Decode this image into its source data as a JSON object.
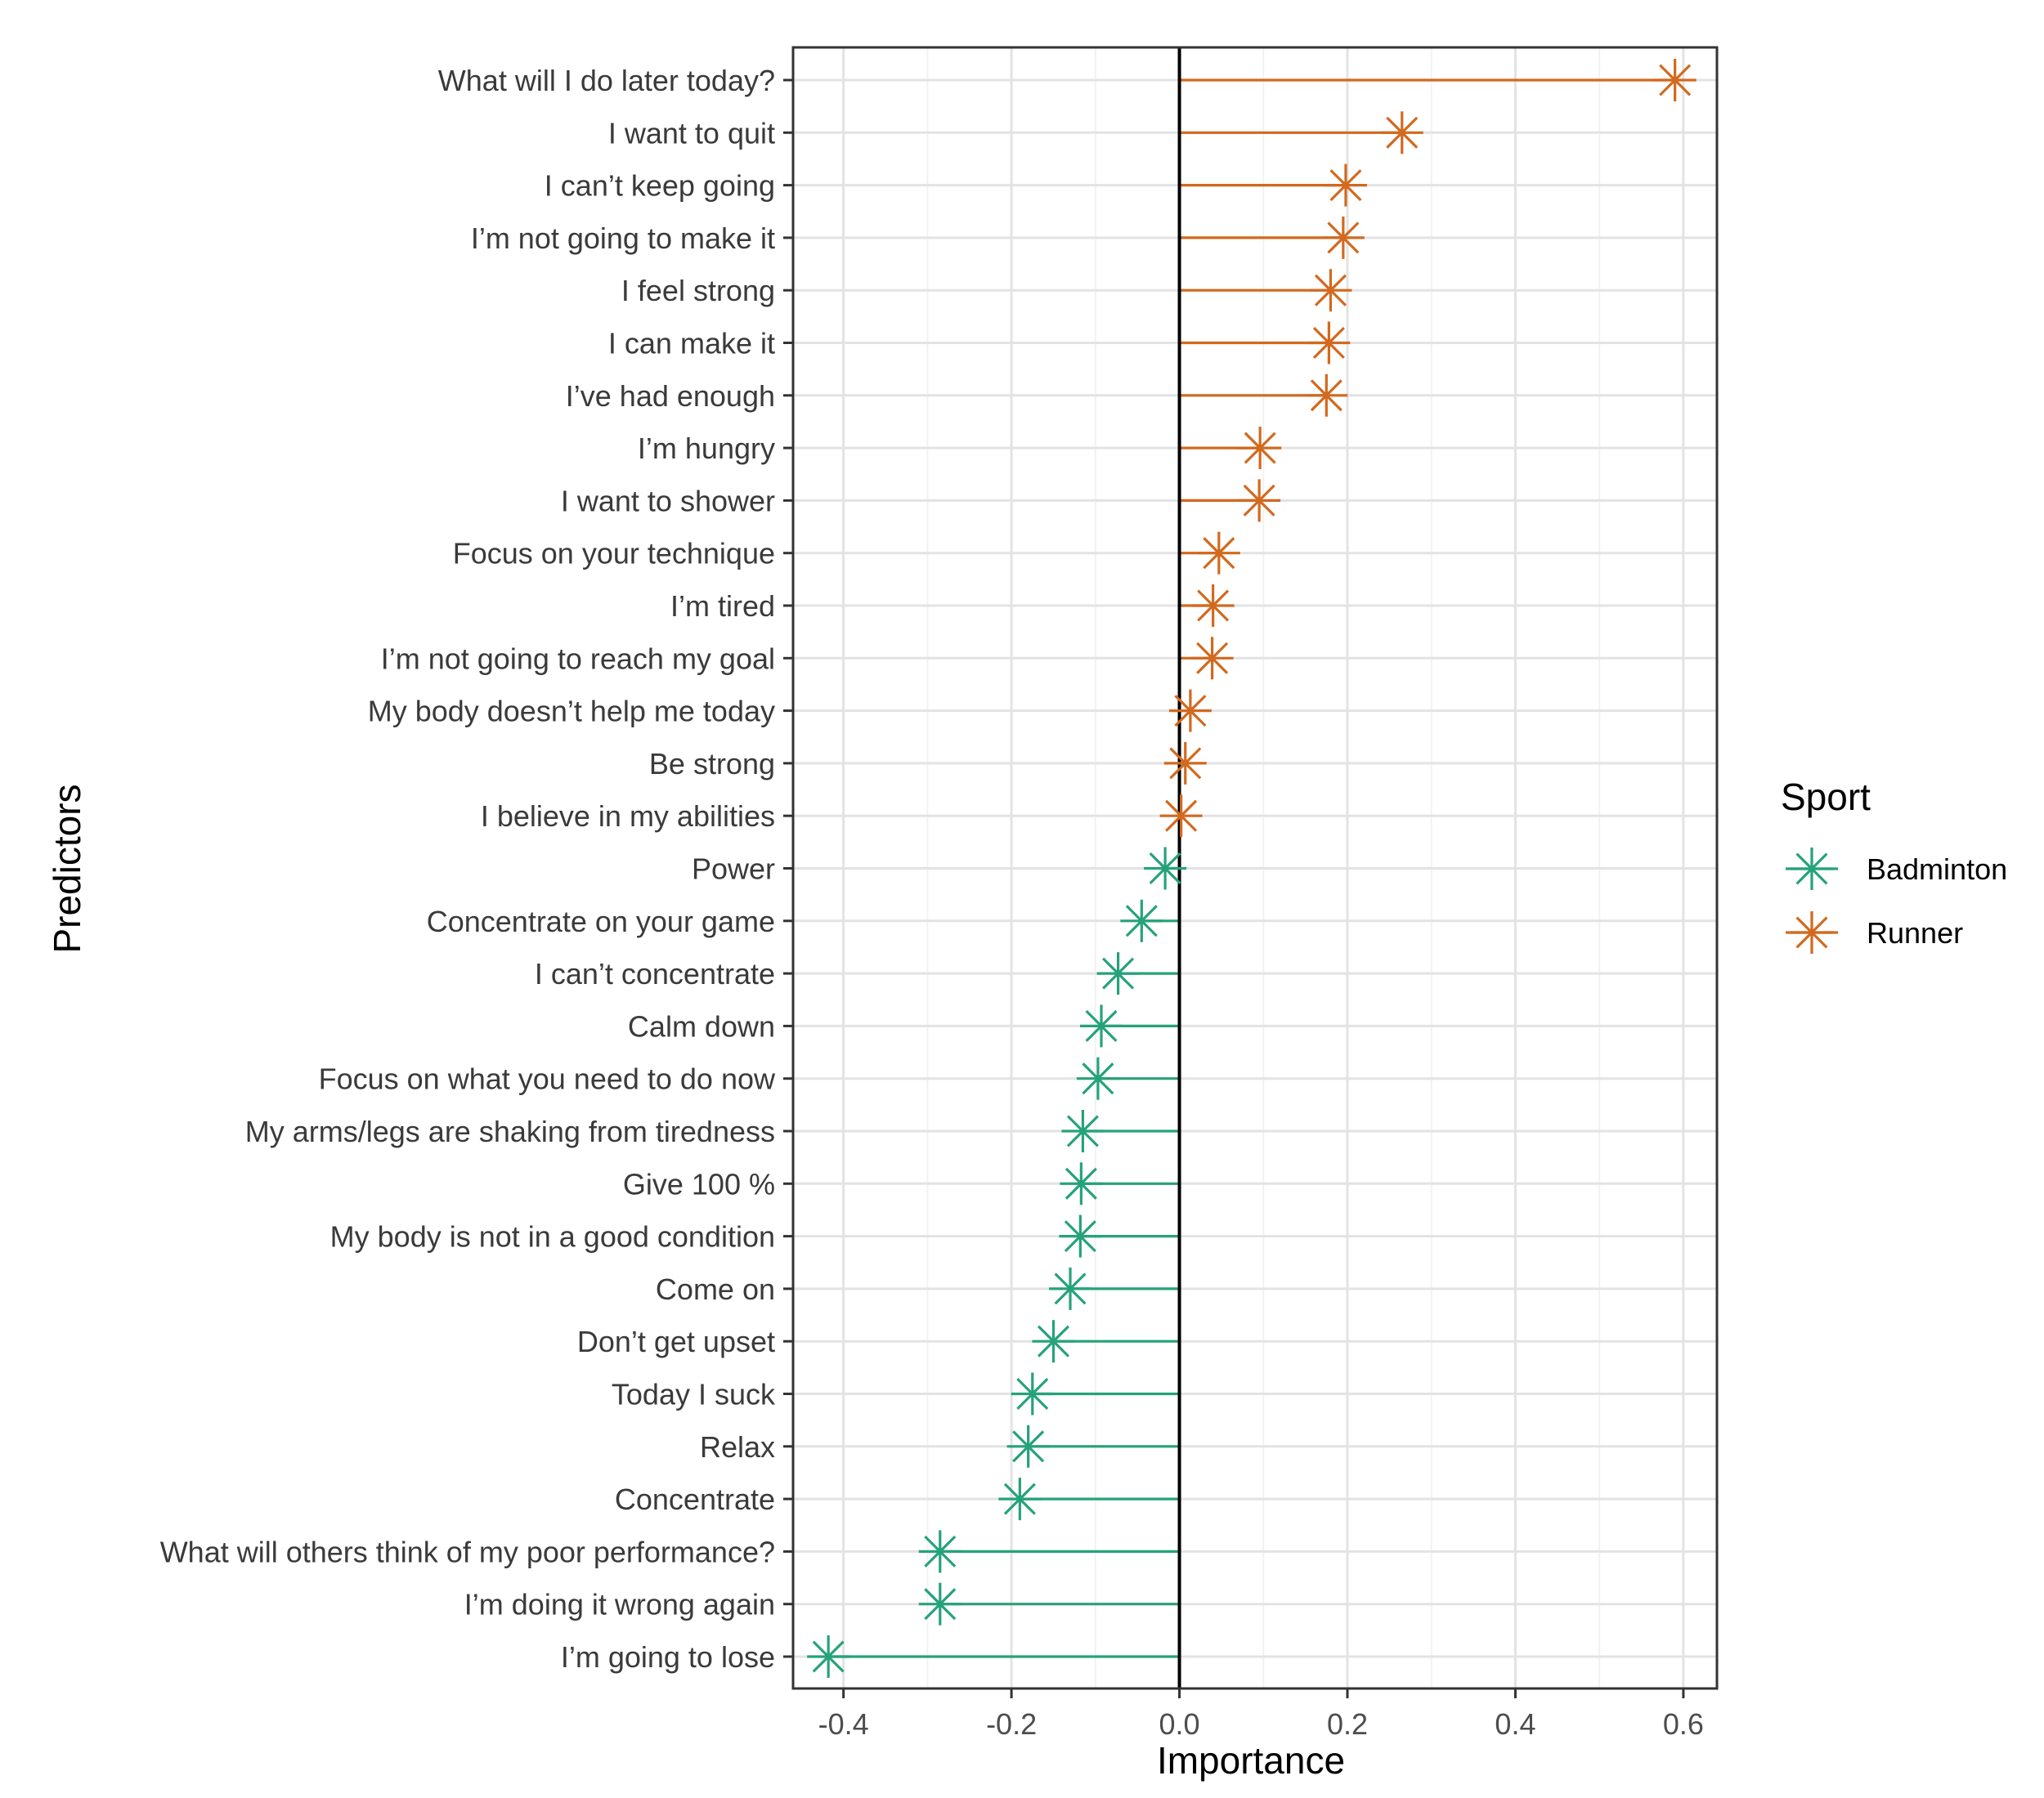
{
  "chart_data": {
    "type": "lollipop",
    "xlabel": "Importance",
    "ylabel": "Predictors",
    "xlim": [
      -0.46,
      0.64
    ],
    "xticks": [
      -0.4,
      -0.2,
      0.0,
      0.2,
      0.4,
      0.6
    ],
    "xtick_labels": [
      "-0.4",
      "-0.2",
      "0.0",
      "0.2",
      "0.4",
      "0.6"
    ],
    "grid": true,
    "legend": {
      "title": "Sport",
      "placement": "right",
      "entries": [
        {
          "name": "Badminton",
          "color": "#26a27b"
        },
        {
          "name": "Runner",
          "color": "#d2691e"
        }
      ]
    },
    "points": [
      {
        "label": "What will I do later today?",
        "value": 0.59,
        "sport": "Runner"
      },
      {
        "label": "I want to quit",
        "value": 0.265,
        "sport": "Runner"
      },
      {
        "label": "I can’t keep going",
        "value": 0.198,
        "sport": "Runner"
      },
      {
        "label": "I’m not going to make it",
        "value": 0.195,
        "sport": "Runner"
      },
      {
        "label": "I feel strong",
        "value": 0.18,
        "sport": "Runner"
      },
      {
        "label": "I can make it",
        "value": 0.178,
        "sport": "Runner"
      },
      {
        "label": "I’ve had enough",
        "value": 0.175,
        "sport": "Runner"
      },
      {
        "label": "I’m hungry",
        "value": 0.096,
        "sport": "Runner"
      },
      {
        "label": "I want to shower",
        "value": 0.095,
        "sport": "Runner"
      },
      {
        "label": "Focus on your technique",
        "value": 0.047,
        "sport": "Runner"
      },
      {
        "label": "I’m tired",
        "value": 0.04,
        "sport": "Runner"
      },
      {
        "label": "I’m not going to reach my goal",
        "value": 0.039,
        "sport": "Runner"
      },
      {
        "label": "My body doesn’t help me today",
        "value": 0.013,
        "sport": "Runner"
      },
      {
        "label": "Be strong",
        "value": 0.007,
        "sport": "Runner"
      },
      {
        "label": "I believe in my abilities",
        "value": 0.002,
        "sport": "Runner"
      },
      {
        "label": "Power",
        "value": -0.017,
        "sport": "Badminton"
      },
      {
        "label": "Concentrate on your game",
        "value": -0.045,
        "sport": "Badminton"
      },
      {
        "label": "I can’t concentrate",
        "value": -0.073,
        "sport": "Badminton"
      },
      {
        "label": "Calm down",
        "value": -0.093,
        "sport": "Badminton"
      },
      {
        "label": "Focus on what you need to do now",
        "value": -0.097,
        "sport": "Badminton"
      },
      {
        "label": "My arms/legs are shaking from tiredness",
        "value": -0.115,
        "sport": "Badminton"
      },
      {
        "label": "Give 100 %",
        "value": -0.117,
        "sport": "Badminton"
      },
      {
        "label": "My body is not in a good condition",
        "value": -0.118,
        "sport": "Badminton"
      },
      {
        "label": "Come on",
        "value": -0.13,
        "sport": "Badminton"
      },
      {
        "label": "Don’t get upset",
        "value": -0.15,
        "sport": "Badminton"
      },
      {
        "label": "Today I suck",
        "value": -0.175,
        "sport": "Badminton"
      },
      {
        "label": "Relax",
        "value": -0.18,
        "sport": "Badminton"
      },
      {
        "label": "Concentrate",
        "value": -0.19,
        "sport": "Badminton"
      },
      {
        "label": "What will others think of my poor performance?",
        "value": -0.285,
        "sport": "Badminton"
      },
      {
        "label": "I’m doing it wrong again",
        "value": -0.285,
        "sport": "Badminton"
      },
      {
        "label": "I’m going to lose",
        "value": -0.418,
        "sport": "Badminton"
      }
    ]
  }
}
